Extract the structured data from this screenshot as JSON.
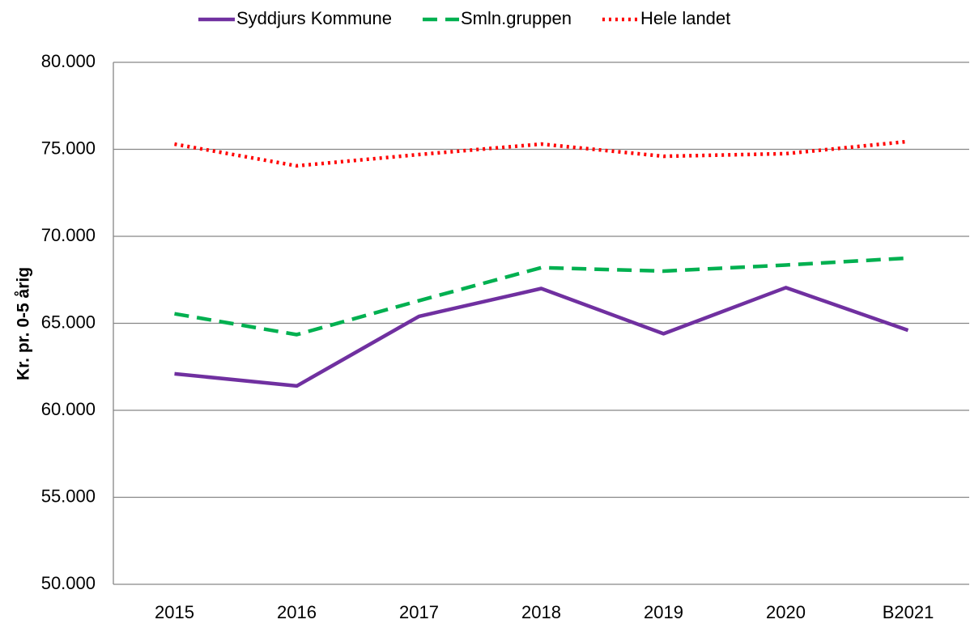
{
  "chart_data": {
    "type": "line",
    "ylabel": "Kr. pr. 0-5 årig",
    "categories": [
      "2015",
      "2016",
      "2017",
      "2018",
      "2019",
      "2020",
      "B2021"
    ],
    "series": [
      {
        "name": "Syddjurs Kommune",
        "color": "#7030a0",
        "style": "solid",
        "values": [
          62100,
          61400,
          65400,
          67000,
          64400,
          67050,
          64600
        ]
      },
      {
        "name": "Smln.gruppen",
        "color": "#00b050",
        "style": "dashed",
        "values": [
          65550,
          64350,
          66300,
          68200,
          68000,
          68350,
          68750
        ]
      },
      {
        "name": "Hele landet",
        "color": "#ff0000",
        "style": "dotted",
        "values": [
          75300,
          74050,
          74700,
          75300,
          74600,
          74750,
          75450
        ]
      }
    ],
    "ylim": [
      50000,
      80000
    ],
    "yticks": [
      {
        "value": 50000,
        "label": "50.000"
      },
      {
        "value": 55000,
        "label": "55.000"
      },
      {
        "value": 60000,
        "label": "60.000"
      },
      {
        "value": 65000,
        "label": "65.000"
      },
      {
        "value": 70000,
        "label": "70.000"
      },
      {
        "value": 75000,
        "label": "75.000"
      },
      {
        "value": 80000,
        "label": "80.000"
      }
    ],
    "grid": true,
    "legend": "top"
  }
}
